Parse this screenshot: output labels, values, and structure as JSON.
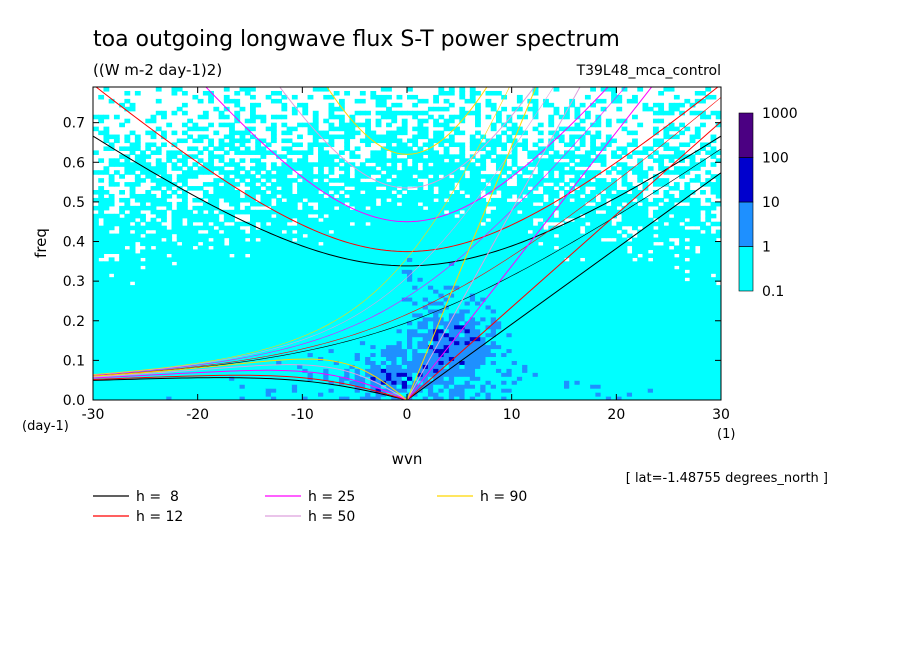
{
  "chart_data": {
    "type": "heatmap",
    "title": "toa outgoing longwave flux S-T power spectrum",
    "subtitle": "((W m-2 day-1)2)",
    "experiment": "T39L48_mca_control",
    "xlabel": "wvn",
    "ylabel": "freq",
    "x_unit": "(1)",
    "y_unit": "(day-1)",
    "xlim": [
      -30,
      30
    ],
    "ylim": [
      0,
      0.79
    ],
    "x_ticks": [
      -30,
      -20,
      -10,
      0,
      10,
      20,
      30
    ],
    "x_tick_labels": [
      "-30",
      "-20",
      "-10",
      "0",
      "10",
      "20",
      "30"
    ],
    "y_ticks": [
      0,
      0.1,
      0.2,
      0.3,
      0.4,
      0.5,
      0.6,
      0.7
    ],
    "y_tick_labels": [
      "0.0",
      "0.1",
      "0.2",
      "0.3",
      "0.4",
      "0.5",
      "0.6",
      "0.7"
    ],
    "colorbar": {
      "levels": [
        0.1,
        1,
        10,
        100,
        1000
      ],
      "labels": [
        "0.1",
        "1",
        "10",
        "100",
        "1000"
      ],
      "colors": [
        "#00ffff",
        "#1e90ff",
        "#0000cd",
        "#4b0082"
      ]
    },
    "dispersion_curves": [
      {
        "label": "h =  8",
        "h": 8,
        "color": "#000000"
      },
      {
        "label": "h = 12",
        "h": 12,
        "color": "#ff0000"
      },
      {
        "label": "h = 25",
        "h": 25,
        "color": "#ff00ff"
      },
      {
        "label": "h = 50",
        "h": 50,
        "color": "#dda0dd"
      },
      {
        "label": "h = 90",
        "h": 90,
        "color": "#ffd700"
      }
    ],
    "annotation": "[ lat=-1.48755 degrees_north ]"
  }
}
